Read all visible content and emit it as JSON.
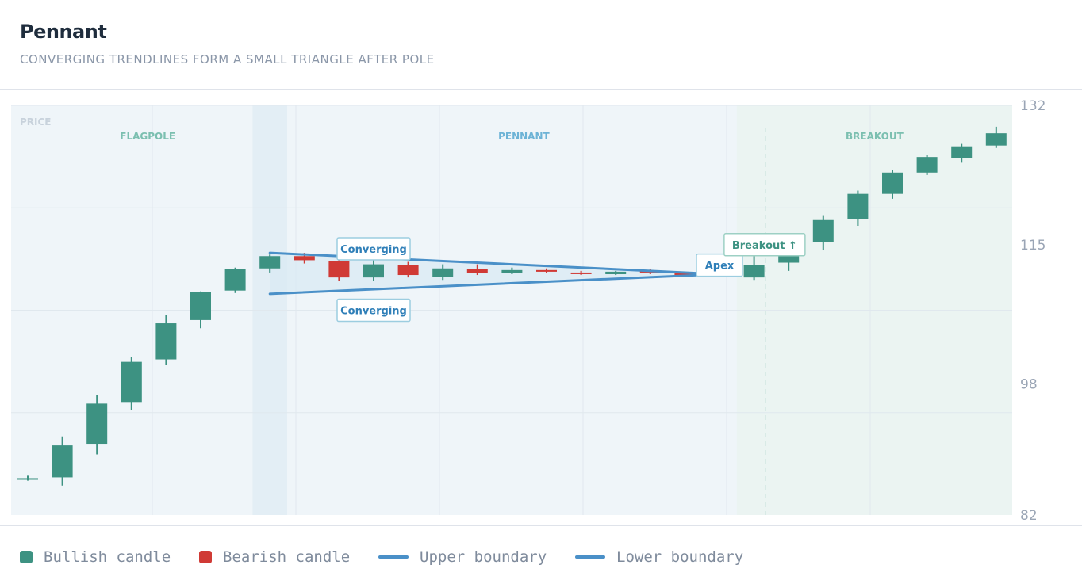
{
  "header": {
    "title": "Pennant",
    "subtitle": "CONVERGING TRENDLINES FORM A SMALL TRIANGLE AFTER POLE"
  },
  "colors": {
    "bullish": "#3d9282",
    "bearish": "#d03a35",
    "boundary": "#4a90c8",
    "phase_label_green": "#7bbfb0",
    "phase_label_blue": "#6db3d6",
    "axis_text": "#9aa5b5"
  },
  "chart_data": {
    "type": "candlestick",
    "title": "Pennant",
    "subtitle": "CONVERGING TRENDLINES FORM A SMALL TRIANGLE AFTER POLE",
    "ylabel": "PRICE",
    "ylim": [
      82,
      132
    ],
    "yticks": [
      82,
      98,
      115,
      132
    ],
    "grid": true,
    "phases": [
      {
        "label": "FLAGPOLE",
        "start": 0,
        "end": 7
      },
      {
        "label": "PENNANT",
        "start": 8,
        "end": 20
      },
      {
        "label": "BREAKOUT",
        "start": 21,
        "end": 28
      }
    ],
    "breakout_index": 21,
    "candles": [
      {
        "o": 86.4,
        "h": 86.8,
        "l": 86.2,
        "c": 86.5
      },
      {
        "o": 86.6,
        "h": 91.6,
        "l": 85.6,
        "c": 90.5
      },
      {
        "o": 90.7,
        "h": 96.6,
        "l": 89.4,
        "c": 95.6
      },
      {
        "o": 95.8,
        "h": 101.3,
        "l": 94.8,
        "c": 100.7
      },
      {
        "o": 101.0,
        "h": 106.4,
        "l": 100.3,
        "c": 105.4
      },
      {
        "o": 105.8,
        "h": 109.3,
        "l": 104.8,
        "c": 109.2
      },
      {
        "o": 109.4,
        "h": 112.2,
        "l": 109.1,
        "c": 112.0
      },
      {
        "o": 112.1,
        "h": 113.8,
        "l": 111.6,
        "c": 113.6
      },
      {
        "o": 113.6,
        "h": 114.0,
        "l": 112.7,
        "c": 113.1
      },
      {
        "o": 113.0,
        "h": 113.8,
        "l": 110.6,
        "c": 111.0
      },
      {
        "o": 111.0,
        "h": 113.3,
        "l": 110.6,
        "c": 112.6
      },
      {
        "o": 112.5,
        "h": 112.9,
        "l": 111.0,
        "c": 111.3
      },
      {
        "o": 111.1,
        "h": 112.6,
        "l": 110.7,
        "c": 112.1
      },
      {
        "o": 112.0,
        "h": 112.6,
        "l": 111.3,
        "c": 111.5
      },
      {
        "o": 111.5,
        "h": 112.2,
        "l": 111.4,
        "c": 111.9
      },
      {
        "o": 111.9,
        "h": 112.1,
        "l": 111.5,
        "c": 111.7
      },
      {
        "o": 111.6,
        "h": 111.8,
        "l": 111.3,
        "c": 111.5
      },
      {
        "o": 111.4,
        "h": 111.8,
        "l": 111.3,
        "c": 111.7
      },
      {
        "o": 111.8,
        "h": 112.0,
        "l": 111.4,
        "c": 111.6
      },
      {
        "o": 111.5,
        "h": 111.7,
        "l": 111.1,
        "c": 111.3
      },
      {
        "o": 111.3,
        "h": 111.5,
        "l": 111.2,
        "c": 111.4
      },
      {
        "o": 111.0,
        "h": 113.6,
        "l": 110.7,
        "c": 112.5
      },
      {
        "o": 112.8,
        "h": 115.5,
        "l": 111.8,
        "c": 115.0
      },
      {
        "o": 115.3,
        "h": 118.6,
        "l": 114.3,
        "c": 118.0
      },
      {
        "o": 118.1,
        "h": 121.6,
        "l": 117.3,
        "c": 121.2
      },
      {
        "o": 121.2,
        "h": 124.1,
        "l": 120.6,
        "c": 123.8
      },
      {
        "o": 123.8,
        "h": 126.0,
        "l": 123.5,
        "c": 125.7
      },
      {
        "o": 125.6,
        "h": 127.3,
        "l": 125.0,
        "c": 127.0
      },
      {
        "o": 127.1,
        "h": 129.4,
        "l": 126.8,
        "c": 128.6
      }
    ],
    "trendlines": [
      {
        "name": "Upper boundary",
        "from": [
          7.0,
          114.0
        ],
        "to": [
          20.0,
          111.4
        ]
      },
      {
        "name": "Lower boundary",
        "from": [
          7.0,
          109.0
        ],
        "to": [
          20.0,
          111.4
        ]
      }
    ],
    "annotations": [
      {
        "text": "Converging",
        "x": 10.0,
        "y": 114.5,
        "style": "blue"
      },
      {
        "text": "Converging",
        "x": 10.0,
        "y": 107.0,
        "style": "blue"
      },
      {
        "text": "Apex",
        "x": 20.0,
        "y": 112.5,
        "style": "blue"
      },
      {
        "text": "Breakout ↑",
        "x": 20.8,
        "y": 115.0,
        "style": "green"
      }
    ]
  },
  "legend": {
    "bullish": "Bullish candle",
    "bearish": "Bearish candle",
    "upper": "Upper boundary",
    "lower": "Lower boundary"
  }
}
